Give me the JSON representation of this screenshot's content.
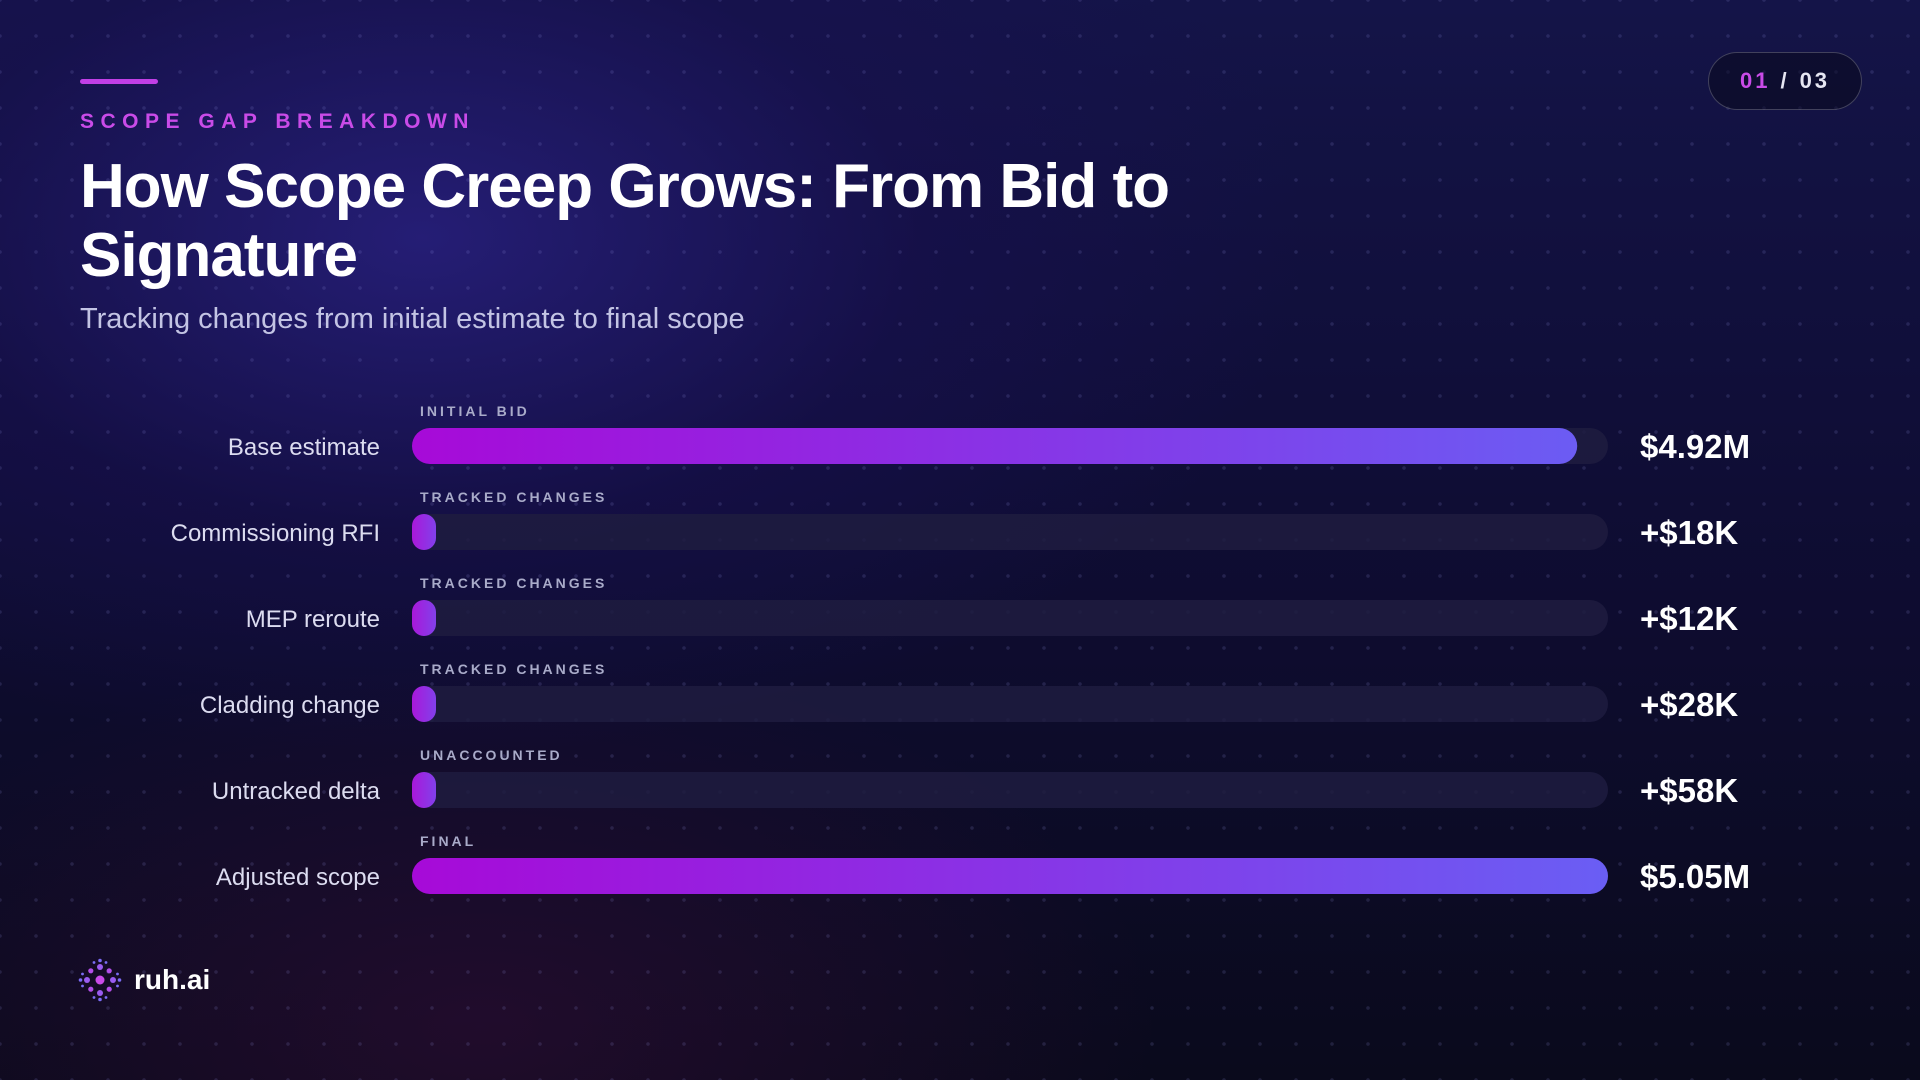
{
  "header": {
    "eyebrow": "SCOPE GAP BREAKDOWN",
    "title": "How Scope Creep Grows: From Bid to Signature",
    "subtitle": "Tracking changes from initial estimate to final scope"
  },
  "pager": {
    "current": "01",
    "separator": "/",
    "total": "03"
  },
  "brand": {
    "name": "ruh.ai",
    "logo_icon": "dot-cluster-logo-icon"
  },
  "colors": {
    "accent": "#c94be8",
    "bar_gradient_start": "#a70ad8",
    "bar_gradient_end": "#6a5ef4",
    "track": "#1f1c40"
  },
  "chart_data": {
    "type": "bar",
    "orientation": "horizontal",
    "xlim": [
      0,
      5.05
    ],
    "unit": "USD millions",
    "rows": [
      {
        "category": "Base estimate",
        "group": "INITIAL BID",
        "value": 4.92,
        "label": "$4.92M"
      },
      {
        "category": "Commissioning RFI",
        "group": "TRACKED CHANGES",
        "value": 0.018,
        "label": "+$18K"
      },
      {
        "category": "MEP reroute",
        "group": "TRACKED CHANGES",
        "value": 0.012,
        "label": "+$12K"
      },
      {
        "category": "Cladding change",
        "group": "TRACKED CHANGES",
        "value": 0.028,
        "label": "+$28K"
      },
      {
        "category": "Untracked delta",
        "group": "UNACCOUNTED",
        "value": 0.058,
        "label": "+$58K"
      },
      {
        "category": "Adjusted scope",
        "group": "FINAL",
        "value": 5.05,
        "label": "$5.05M"
      }
    ]
  }
}
